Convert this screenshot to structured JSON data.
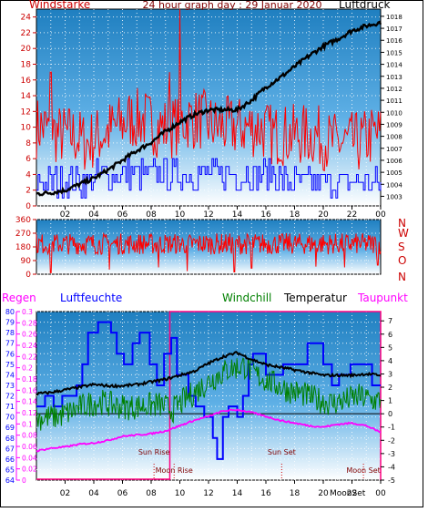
{
  "colors": {
    "red": "#ff0000",
    "blue": "#0000ff",
    "green": "#008000",
    "black": "#000000",
    "magenta": "#ff00ff",
    "crimson": "#cc0000",
    "navy": "#000080",
    "maroon": "#800000",
    "sky_top": "#1f7fc0",
    "sky_bottom": "#ffffff"
  },
  "chart_data": [
    {
      "type": "line",
      "title": "24 hour graph day : 29 Januar 2020",
      "left_label": "Windstarke",
      "right_label": "Luftdruck",
      "x_ticks": [
        "02",
        "04",
        "06",
        "08",
        "10",
        "12",
        "14",
        "16",
        "18",
        "20",
        "22",
        "00"
      ],
      "left_ticks": [
        "0",
        "2",
        "4",
        "6",
        "8",
        "10",
        "12",
        "14",
        "16",
        "18",
        "20",
        "22",
        "24"
      ],
      "left_ylim": [
        0,
        25
      ],
      "right_ticks": [
        "1003",
        "1004",
        "1005",
        "1006",
        "1007",
        "1008",
        "1009",
        "1010",
        "1011",
        "1012",
        "1013",
        "1014",
        "1015",
        "1016",
        "1017",
        "1018"
      ],
      "right_ylim": [
        1002.2,
        1018.6
      ],
      "series": [
        {
          "name": "Windstarke gust",
          "color": "red",
          "kind": "noise",
          "base": [
            10,
            9,
            9,
            8,
            9,
            10,
            11,
            11,
            10,
            10,
            11,
            11,
            10,
            10,
            10,
            10,
            9,
            9,
            9,
            9,
            8,
            8,
            8,
            9
          ],
          "amp": 4,
          "spikes": [
            [
              10.0,
              25
            ],
            [
              9.3,
              17
            ],
            [
              1.0,
              17
            ]
          ]
        },
        {
          "name": "Windstarke avg",
          "color": "blue",
          "kind": "steps",
          "base": [
            3,
            3,
            3,
            3,
            4,
            4,
            4,
            4,
            4,
            4,
            4,
            4,
            4,
            4,
            4,
            4,
            4,
            3,
            3,
            3,
            3,
            3,
            3,
            3
          ],
          "amp": 2
        },
        {
          "name": "Luftdruck",
          "color": "black",
          "kind": "smooth",
          "axis": "right",
          "x": [
            0,
            1,
            2,
            3,
            4,
            5,
            6,
            7,
            8,
            9,
            10,
            11,
            12,
            13,
            14,
            15,
            16,
            17,
            18,
            19,
            20,
            21,
            22,
            23,
            24
          ],
          "values": [
            1003.2,
            1003.3,
            1003.5,
            1004.0,
            1004.5,
            1005.2,
            1006.0,
            1006.8,
            1007.5,
            1008.4,
            1009.2,
            1009.8,
            1010.2,
            1010.2,
            1010.2,
            1011.0,
            1012.1,
            1012.9,
            1013.8,
            1014.7,
            1015.5,
            1016.1,
            1016.8,
            1017.2,
            1017.5
          ],
          "amp": 0.18
        }
      ]
    },
    {
      "type": "line",
      "title": "",
      "x_ticks": [],
      "left_ticks": [
        "0",
        "90",
        "180",
        "270",
        "360"
      ],
      "left_ylim": [
        0,
        360
      ],
      "direction_labels": [
        "N",
        "W",
        "S",
        "O",
        "N"
      ],
      "series": [
        {
          "name": "Windrichtung",
          "color": "red",
          "kind": "noise",
          "base": [
            200
          ],
          "amp": 70,
          "dips": [
            [
              1.0,
              10
            ],
            [
              5.1,
              30
            ],
            [
              8.5,
              45
            ],
            [
              10.5,
              20
            ],
            [
              13.8,
              15
            ],
            [
              15.0,
              40
            ],
            [
              19.5,
              50
            ],
            [
              21.5,
              45
            ],
            [
              23.8,
              60
            ]
          ]
        }
      ]
    },
    {
      "type": "line",
      "title": "",
      "labels": {
        "regen": "Regen",
        "luftfeuchte": "Luftfeuchte",
        "windchill": "Windchill",
        "temperatur": "Temperatur",
        "taupunkt": "Taupunkt"
      },
      "x_ticks": [
        "02",
        "04",
        "06",
        "08",
        "10",
        "12",
        "14",
        "16",
        "18",
        "20",
        "22",
        "00"
      ],
      "regen_ticks": [
        "0",
        "0.02",
        "0.04",
        "0.06",
        "0.08",
        "0.1",
        "0.12",
        "0.14",
        "0.16",
        "0.18",
        "0.2",
        "0.22",
        "0.24",
        "0.26",
        "0.28",
        "0.3"
      ],
      "regen_ylim": [
        0,
        0.3
      ],
      "humidity_ticks": [
        "64",
        "65",
        "66",
        "67",
        "68",
        "69",
        "70",
        "71",
        "72",
        "73",
        "74",
        "75",
        "76",
        "77",
        "78",
        "79",
        "80"
      ],
      "humidity_ylim": [
        64,
        80
      ],
      "temp_ticks": [
        "-5",
        "-4",
        "-3",
        "-2",
        "-1",
        "0",
        "1",
        "2",
        "3",
        "4",
        "5",
        "6",
        "7"
      ],
      "temp_ylim": [
        -5,
        7.7
      ],
      "events": [
        {
          "label": "Sun Rise",
          "x": 8.2
        },
        {
          "label": "Moon Rise",
          "x": 9.6
        },
        {
          "label": "Sun Set",
          "x": 17.1
        },
        {
          "label": "Moon Set",
          "x": 22.8
        }
      ],
      "extra_tick_label": "MoonSet",
      "regen_bars": [
        {
          "x0": 0.0,
          "x1": 9.3,
          "value": 0.0
        },
        {
          "x0": 9.3,
          "x1": 24.0,
          "value": 0.3
        }
      ],
      "series": [
        {
          "name": "Luftfeuchte",
          "color": "blue",
          "kind": "polyline",
          "axis": "humidity",
          "points": [
            [
              0,
              71
            ],
            [
              0.6,
              71
            ],
            [
              0.6,
              72
            ],
            [
              1.2,
              72
            ],
            [
              1.2,
              71
            ],
            [
              1.8,
              71
            ],
            [
              1.8,
              72
            ],
            [
              2.8,
              72
            ],
            [
              2.8,
              73
            ],
            [
              3.2,
              73
            ],
            [
              3.2,
              75
            ],
            [
              3.6,
              75
            ],
            [
              3.6,
              78
            ],
            [
              4.3,
              78
            ],
            [
              4.3,
              79
            ],
            [
              5.2,
              79
            ],
            [
              5.2,
              78
            ],
            [
              5.6,
              78
            ],
            [
              5.6,
              76
            ],
            [
              6.1,
              76
            ],
            [
              6.1,
              75
            ],
            [
              6.7,
              75
            ],
            [
              6.7,
              77
            ],
            [
              7.2,
              77
            ],
            [
              7.2,
              78
            ],
            [
              7.9,
              78
            ],
            [
              7.9,
              75
            ],
            [
              8.4,
              75
            ],
            [
              8.4,
              73
            ],
            [
              8.9,
              73
            ],
            [
              8.9,
              76
            ],
            [
              9.4,
              76
            ],
            [
              9.4,
              77.5
            ],
            [
              9.8,
              77.5
            ],
            [
              9.8,
              74
            ],
            [
              10.6,
              74
            ],
            [
              10.6,
              72
            ],
            [
              11.1,
              72
            ],
            [
              11.1,
              71
            ],
            [
              11.7,
              71
            ],
            [
              11.7,
              70
            ],
            [
              12.3,
              70
            ],
            [
              12.3,
              68
            ],
            [
              12.6,
              68
            ],
            [
              12.6,
              66
            ],
            [
              13.0,
              66
            ],
            [
              13.0,
              70
            ],
            [
              13.4,
              70
            ],
            [
              13.4,
              71
            ],
            [
              14.0,
              71
            ],
            [
              14.0,
              70
            ],
            [
              14.4,
              70
            ],
            [
              14.4,
              72
            ],
            [
              14.8,
              72
            ],
            [
              14.8,
              75
            ],
            [
              15.1,
              75
            ],
            [
              15.1,
              76
            ],
            [
              16.0,
              76
            ],
            [
              16.0,
              74
            ],
            [
              17.2,
              74
            ],
            [
              17.2,
              75
            ],
            [
              18.9,
              75
            ],
            [
              18.9,
              77
            ],
            [
              20.0,
              77
            ],
            [
              20.0,
              75
            ],
            [
              20.6,
              75
            ],
            [
              20.6,
              73
            ],
            [
              21.1,
              73
            ],
            [
              21.1,
              74
            ],
            [
              21.9,
              74
            ],
            [
              21.9,
              75
            ],
            [
              23.4,
              75
            ],
            [
              23.4,
              73
            ],
            [
              24,
              73
            ]
          ]
        },
        {
          "name": "Windchill",
          "color": "green",
          "kind": "noise",
          "axis": "temp",
          "base": [
            -0.3,
            -0.2,
            0.2,
            0.7,
            0.9,
            0.6,
            0.5,
            0.6,
            0.7,
            0.3,
            1.2,
            2.0,
            2.8,
            3.4,
            3.6,
            2.8,
            2.3,
            1.8,
            1.5,
            1.1,
            0.8,
            1.0,
            1.3,
            1.0
          ],
          "amp": 1.0
        },
        {
          "name": "Temperatur",
          "color": "black",
          "kind": "smooth",
          "axis": "temp",
          "x": [
            0,
            1,
            2,
            3,
            4,
            5,
            6,
            7,
            8,
            9,
            10,
            11,
            12,
            13,
            14,
            15,
            16,
            17,
            18,
            19,
            20,
            21,
            22,
            23,
            24
          ],
          "values": [
            1.5,
            1.6,
            1.8,
            2.0,
            2.2,
            2.1,
            2.1,
            2.2,
            2.4,
            2.6,
            2.9,
            3.2,
            3.8,
            4.3,
            4.6,
            4.1,
            3.7,
            3.5,
            3.3,
            3.1,
            2.9,
            2.9,
            2.9,
            3.0,
            2.9
          ],
          "amp": 0.1
        },
        {
          "name": "Taupunkt",
          "color": "magenta",
          "kind": "smooth",
          "axis": "temp",
          "x": [
            0,
            1,
            2,
            3,
            4,
            5,
            6,
            7,
            8,
            9,
            10,
            11,
            12,
            13,
            14,
            15,
            16,
            17,
            18,
            19,
            20,
            21,
            22,
            23,
            24
          ],
          "values": [
            -2.8,
            -2.6,
            -2.5,
            -2.3,
            -2.2,
            -2.0,
            -1.7,
            -1.6,
            -1.5,
            -1.3,
            -0.9,
            -0.5,
            -0.2,
            0.2,
            0.3,
            0.1,
            -0.2,
            -0.5,
            -0.7,
            -0.9,
            -1.0,
            -0.8,
            -0.7,
            -0.9,
            -1.4
          ],
          "amp": 0.06
        }
      ]
    }
  ]
}
